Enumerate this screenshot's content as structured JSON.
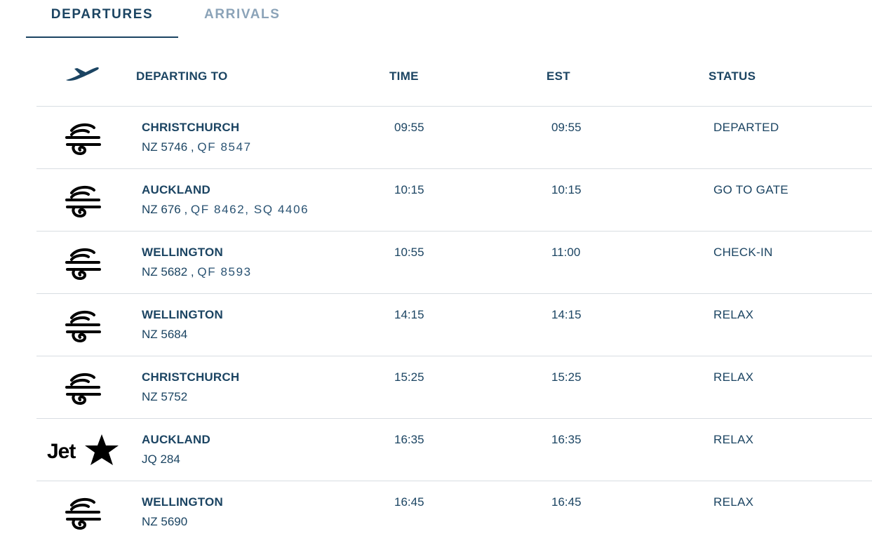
{
  "tabs": {
    "departures": "DEPARTURES",
    "arrivals": "ARRIVALS"
  },
  "header": {
    "icon": "airplane-takeoff-icon",
    "departing_to": "DEPARTING TO",
    "time": "TIME",
    "est": "EST",
    "status": "STATUS"
  },
  "colors": {
    "primary": "#1b4462",
    "inactive_tab": "#8ba3b8",
    "divider": "#d8dde2"
  },
  "flights": [
    {
      "airline": "air-new-zealand",
      "logo": "koru-icon",
      "destination": "CHRISTCHURCH",
      "flight": "NZ 5746",
      "separator": " , ",
      "codeshares": "QF 8547",
      "time": "09:55",
      "est": "09:55",
      "status": "DEPARTED"
    },
    {
      "airline": "air-new-zealand",
      "logo": "koru-icon",
      "destination": "AUCKLAND",
      "flight": "NZ 676",
      "separator": " , ",
      "codeshares": "QF 8462, SQ 4406",
      "time": "10:15",
      "est": "10:15",
      "status": "GO TO GATE"
    },
    {
      "airline": "air-new-zealand",
      "logo": "koru-icon",
      "destination": "WELLINGTON",
      "flight": "NZ 5682",
      "separator": " , ",
      "codeshares": "QF 8593",
      "time": "10:55",
      "est": "11:00",
      "status": "CHECK-IN"
    },
    {
      "airline": "air-new-zealand",
      "logo": "koru-icon",
      "destination": "WELLINGTON",
      "flight": "NZ 5684",
      "separator": "",
      "codeshares": "",
      "time": "14:15",
      "est": "14:15",
      "status": "RELAX"
    },
    {
      "airline": "air-new-zealand",
      "logo": "koru-icon",
      "destination": "CHRISTCHURCH",
      "flight": "NZ 5752",
      "separator": "",
      "codeshares": "",
      "time": "15:25",
      "est": "15:25",
      "status": "RELAX"
    },
    {
      "airline": "jetstar",
      "logo": "jetstar-logo-icon",
      "logo_text": "Jet",
      "destination": "AUCKLAND",
      "flight": "JQ 284",
      "separator": "",
      "codeshares": "",
      "time": "16:35",
      "est": "16:35",
      "status": "RELAX"
    },
    {
      "airline": "air-new-zealand",
      "logo": "koru-icon",
      "destination": "WELLINGTON",
      "flight": "NZ 5690",
      "separator": "",
      "codeshares": "",
      "time": "16:45",
      "est": "16:45",
      "status": "RELAX"
    }
  ]
}
